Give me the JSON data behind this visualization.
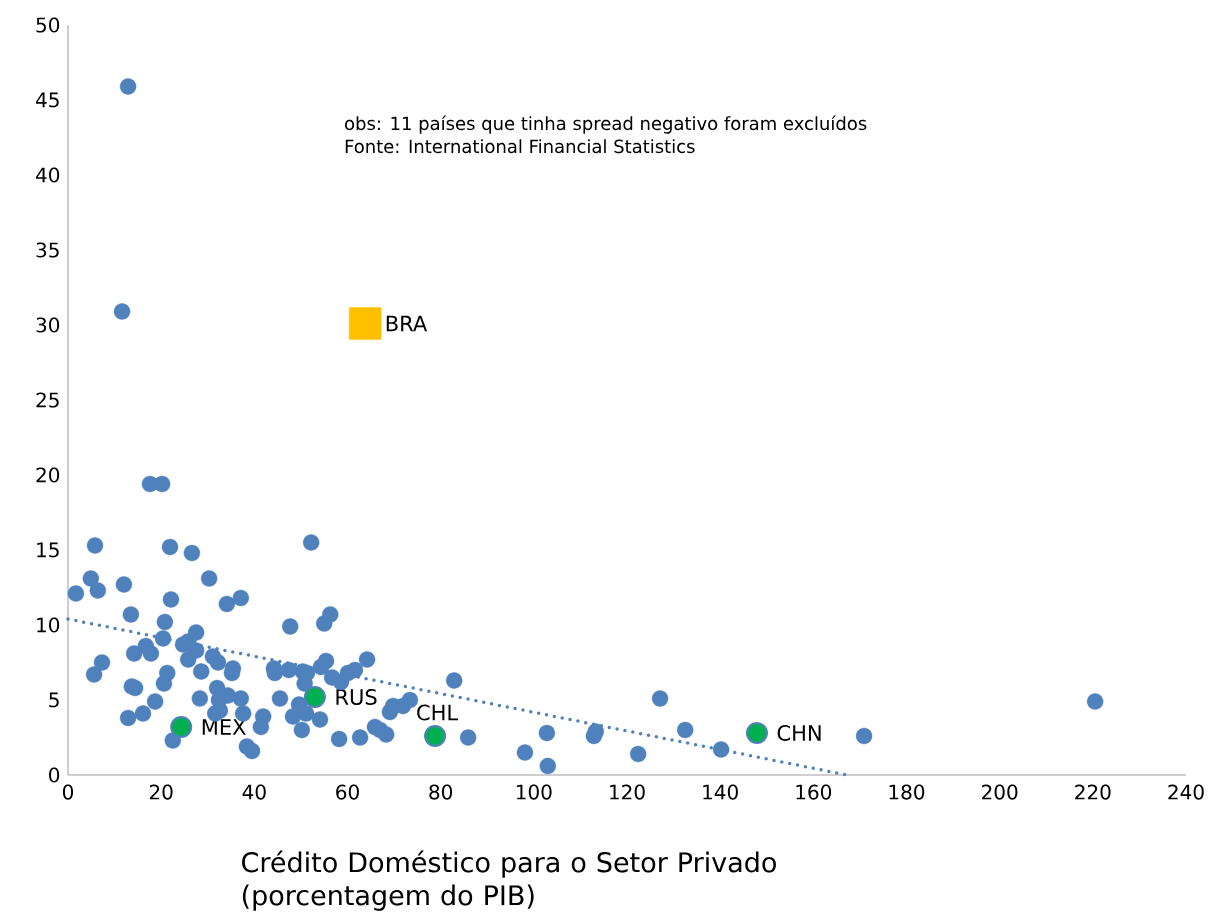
{
  "chart_data": {
    "type": "scatter",
    "xlabel": "Crédito Doméstico para o Setor Privado (porcentagem do PIB)",
    "xlim": [
      0,
      240
    ],
    "xticks": [
      0,
      20,
      40,
      60,
      80,
      100,
      120,
      140,
      160,
      180,
      200,
      220,
      240
    ],
    "ylim": [
      0,
      50
    ],
    "yticks": [
      0,
      5,
      10,
      15,
      20,
      25,
      30,
      35,
      40,
      45,
      50
    ],
    "grid": false,
    "series": [
      {
        "type": "scatter",
        "marker": "circle",
        "color": "#4f81bd",
        "x": [
          1.7,
          4.9,
          5.8,
          6.4,
          5.6,
          7.3,
          12.0,
          12.9,
          13.5,
          13.7,
          14.4,
          14.2,
          16.1,
          16.7,
          17.6,
          17.8,
          18.7,
          20.2,
          20.4,
          20.8,
          20.6,
          21.3,
          21.9,
          22.1,
          22.5,
          24.7,
          25.8,
          25.8,
          26.6,
          27.5,
          27.5,
          28.3,
          28.6,
          30.3,
          31.1,
          31.6,
          32.0,
          32.2,
          32.4,
          32.6,
          34.1,
          34.3,
          35.2,
          35.4,
          37.1,
          37.1,
          37.6,
          38.4,
          39.5,
          41.4,
          41.9,
          44.2,
          44.4,
          45.5,
          47.4,
          47.7,
          48.3,
          49.6,
          50.2,
          50.4,
          50.8,
          51.3,
          51.1,
          52.2,
          54.1,
          54.3,
          55.0,
          55.4,
          56.3,
          56.7,
          58.2,
          58.6,
          60.1,
          61.6,
          62.7,
          64.2,
          65.9,
          67.0,
          68.3,
          69.1,
          69.8,
          71.9,
          73.4,
          82.9,
          85.9,
          98.1,
          102.8,
          103.0,
          112.9,
          113.3,
          122.4,
          127.1,
          132.5,
          140.2,
          170.9,
          220.5,
          12.9,
          11.6
        ],
        "values": [
          12.1,
          13.1,
          15.3,
          12.3,
          6.7,
          7.5,
          12.7,
          3.8,
          10.7,
          5.9,
          5.8,
          8.1,
          4.1,
          8.6,
          19.4,
          8.1,
          4.9,
          19.4,
          9.1,
          10.2,
          6.1,
          6.8,
          15.2,
          11.7,
          2.3,
          8.7,
          8.9,
          7.7,
          14.8,
          9.5,
          8.3,
          5.1,
          6.9,
          13.1,
          7.9,
          4.1,
          5.8,
          7.5,
          5.0,
          4.3,
          11.4,
          5.3,
          6.8,
          7.1,
          11.8,
          5.1,
          4.1,
          1.9,
          1.6,
          3.2,
          3.9,
          7.1,
          6.8,
          5.1,
          7.0,
          9.9,
          3.9,
          4.7,
          3.0,
          6.9,
          6.1,
          6.8,
          4.1,
          15.5,
          3.7,
          7.2,
          10.1,
          7.6,
          10.7,
          6.5,
          2.4,
          6.2,
          6.8,
          7.0,
          2.5,
          7.7,
          3.2,
          3.0,
          2.7,
          4.2,
          4.6,
          4.6,
          5.0,
          6.3,
          2.5,
          1.5,
          2.8,
          0.6,
          2.6,
          2.9,
          1.4,
          5.1,
          3.0,
          1.7,
          2.6,
          4.9,
          45.9,
          30.9
        ]
      },
      {
        "type": "scatter",
        "marker": "circle",
        "color": "#00b050",
        "x": [
          24.3,
          53.0,
          78.8,
          147.9
        ],
        "values": [
          3.2,
          5.2,
          2.6,
          2.8
        ]
      },
      {
        "type": "scatter",
        "marker": "square",
        "color": "#ffc000",
        "x": [
          63.8
        ],
        "values": [
          30.1
        ]
      },
      {
        "type": "line",
        "marker": "none",
        "line_style": "dotted",
        "color": "#4f81bd",
        "x": [
          0,
          167.2
        ],
        "values": [
          10.4,
          0
        ]
      }
    ],
    "annotations": [
      "obs: 11 países que tinha spread negativo foram excluídos",
      "Fonte: International Financial Statistics",
      {
        "text": "MEX",
        "x": 24.3,
        "y": 3.2
      },
      {
        "text": "RUS",
        "x": 53.0,
        "y": 5.2
      },
      {
        "text": "CHL",
        "x": 78.8,
        "y": 2.6
      },
      {
        "text": "CHN",
        "x": 147.9,
        "y": 2.8
      },
      {
        "text": "BRA",
        "x": 63.8,
        "y": 30.1
      }
    ]
  }
}
